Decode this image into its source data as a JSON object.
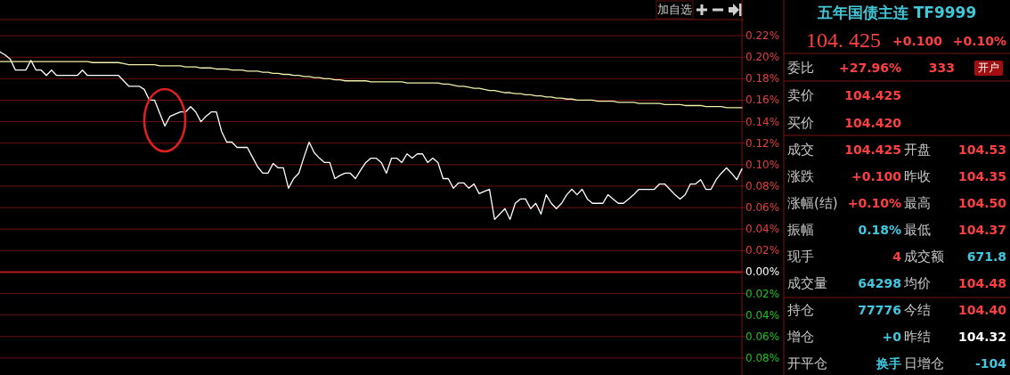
{
  "chart_data": [
    {
      "type": "line",
      "categories": [
        null,
        null,
        null,
        null,
        null,
        null,
        null,
        null,
        null,
        null,
        null,
        null,
        null,
        null,
        null,
        null,
        null,
        null,
        null,
        null,
        null,
        null,
        null,
        null,
        null,
        null,
        null,
        null,
        null,
        null,
        null,
        null,
        null,
        null,
        null,
        null,
        null,
        null,
        null,
        null,
        null,
        null,
        null,
        null,
        null,
        null,
        null,
        null,
        null,
        null,
        null,
        null,
        null,
        null,
        null,
        null,
        null,
        null,
        null,
        null,
        null,
        null,
        null,
        null,
        null,
        null,
        null,
        null,
        null,
        null,
        null,
        null,
        null,
        null,
        null,
        null,
        null,
        null,
        null,
        null,
        null,
        null,
        null,
        null,
        null,
        null,
        null,
        null,
        null,
        null,
        null,
        null,
        null,
        null,
        null,
        null,
        null,
        null,
        null,
        null,
        null,
        null,
        null,
        null,
        null,
        null,
        null,
        null,
        null,
        null,
        null,
        null,
        null,
        null,
        null,
        null,
        null,
        null,
        null,
        null,
        null,
        null,
        null,
        null,
        null,
        null,
        null,
        null,
        null,
        null,
        null,
        null,
        null,
        null,
        null,
        null,
        null,
        null,
        null,
        null,
        null,
        null,
        null,
        null,
        null
      ],
      "series": [
        {
          "color": "#ffffff",
          "values": [
            0.205,
            0.202,
            0.198,
            0.188,
            0.188,
            0.188,
            0.197,
            0.188,
            0.188,
            0.183,
            0.188,
            0.183,
            0.183,
            0.183,
            0.183,
            0.183,
            0.188,
            0.183,
            0.183,
            0.183,
            0.183,
            0.183,
            0.183,
            0.183,
            0.178,
            0.173,
            0.173,
            0.173,
            0.17,
            0.16,
            0.16,
            0.148,
            0.136,
            0.145,
            0.147,
            0.149,
            0.149,
            0.154,
            0.149,
            0.14,
            0.145,
            0.149,
            0.149,
            0.131,
            0.121,
            0.121,
            0.116,
            0.116,
            0.116,
            0.107,
            0.098,
            0.092,
            0.092,
            0.101,
            0.097,
            0.097,
            0.078,
            0.087,
            0.092,
            0.107,
            0.121,
            0.111,
            0.106,
            0.102,
            0.102,
            0.087,
            0.09,
            0.092,
            0.092,
            0.087,
            0.095,
            0.102,
            0.106,
            0.106,
            0.102,
            0.092,
            0.106,
            0.106,
            0.102,
            0.11,
            0.106,
            0.11,
            0.11,
            0.102,
            0.106,
            0.102,
            0.087,
            0.087,
            0.078,
            0.083,
            0.083,
            0.078,
            0.082,
            0.073,
            0.075,
            0.077,
            0.049,
            0.054,
            0.059,
            0.049,
            0.064,
            0.068,
            0.068,
            0.059,
            0.064,
            0.054,
            0.072,
            0.064,
            0.059,
            0.064,
            0.072,
            0.077,
            0.072,
            0.077,
            0.068,
            0.064,
            0.064,
            0.064,
            0.072,
            0.068,
            0.064,
            0.064,
            0.068,
            0.072,
            0.077,
            0.077,
            0.077,
            0.077,
            0.082,
            0.082,
            0.077,
            0.072,
            0.068,
            0.072,
            0.082,
            0.082,
            0.086,
            0.077,
            0.077,
            0.086,
            0.092,
            0.097,
            0.092,
            0.086,
            0.096
          ]
        },
        {
          "color": "#f0f0a8",
          "values": [
            0.196,
            0.196,
            0.196,
            0.196,
            0.196,
            0.196,
            0.196,
            0.196,
            0.196,
            0.196,
            0.196,
            0.196,
            0.196,
            0.196,
            0.196,
            0.196,
            0.196,
            0.196,
            0.195,
            0.195,
            0.195,
            0.195,
            0.195,
            0.195,
            0.194,
            0.193,
            0.193,
            0.193,
            0.193,
            0.193,
            0.193,
            0.192,
            0.192,
            0.192,
            0.192,
            0.192,
            0.191,
            0.191,
            0.191,
            0.19,
            0.19,
            0.19,
            0.189,
            0.189,
            0.189,
            0.188,
            0.188,
            0.188,
            0.187,
            0.187,
            0.187,
            0.186,
            0.186,
            0.185,
            0.185,
            0.184,
            0.184,
            0.183,
            0.183,
            0.182,
            0.182,
            0.181,
            0.181,
            0.18,
            0.18,
            0.179,
            0.179,
            0.178,
            0.178,
            0.178,
            0.178,
            0.178,
            0.177,
            0.177,
            0.177,
            0.177,
            0.177,
            0.177,
            0.177,
            0.176,
            0.176,
            0.176,
            0.176,
            0.176,
            0.176,
            0.176,
            0.175,
            0.175,
            0.174,
            0.173,
            0.173,
            0.172,
            0.171,
            0.171,
            0.17,
            0.169,
            0.169,
            0.168,
            0.167,
            0.167,
            0.166,
            0.166,
            0.165,
            0.165,
            0.164,
            0.164,
            0.163,
            0.163,
            0.162,
            0.162,
            0.161,
            0.161,
            0.16,
            0.16,
            0.16,
            0.16,
            0.159,
            0.159,
            0.159,
            0.159,
            0.158,
            0.158,
            0.158,
            0.158,
            0.157,
            0.157,
            0.157,
            0.157,
            0.157,
            0.156,
            0.156,
            0.156,
            0.156,
            0.155,
            0.155,
            0.155,
            0.155,
            0.154,
            0.154,
            0.154,
            0.154,
            0.153,
            0.153,
            0.153,
            0.153
          ]
        }
      ],
      "ylim": [
        -0.095,
        0.235
      ],
      "yticks": [
        {
          "value": -0.08,
          "label": "0.08%"
        },
        {
          "value": -0.06,
          "label": "0.06%"
        },
        {
          "value": -0.04,
          "label": "0.04%"
        },
        {
          "value": -0.02,
          "label": "0.02%"
        },
        {
          "value": 0,
          "label": "0.00%"
        },
        {
          "value": 0.02,
          "label": "0.02%"
        },
        {
          "value": 0.04,
          "label": "0.04%"
        },
        {
          "value": 0.06,
          "label": "0.06%"
        },
        {
          "value": 0.08,
          "label": "0.08%"
        },
        {
          "value": 0.1,
          "label": "0.10%"
        },
        {
          "value": 0.12,
          "label": "0.12%"
        },
        {
          "value": 0.14,
          "label": "0.14%"
        },
        {
          "value": 0.16,
          "label": "0.16%"
        },
        {
          "value": 0.18,
          "label": "0.18%"
        },
        {
          "value": 0.2,
          "label": "0.20%"
        },
        {
          "value": 0.22,
          "label": "0.22%"
        }
      ],
      "grid": "y",
      "ref_lines": [
        {
          "axis": "y",
          "value": 0,
          "color": "#b01818"
        }
      ]
    },
    {
      "type": "other",
      "title": "五年国债主连 TF9999",
      "color": "#40c8d8",
      "annotations": [
        "加自选",
        "104. 425",
        "+0.100",
        "+0.10%",
        "委比",
        "+27.96%",
        "333",
        "开户",
        "卖价",
        "104.425",
        "买价",
        "104.420",
        "成交",
        "104.425",
        "开盘",
        "104.53",
        "涨跌",
        "+0.100",
        "昨收",
        "104.35",
        "涨幅(结)",
        "+0.10%",
        "最高",
        "104.50",
        "振幅",
        "0.18%",
        "最低",
        "104.37",
        "现手",
        "4",
        "成交额",
        "671.8",
        "成交量",
        "64298",
        "均价",
        "104.48",
        "持仓",
        "77776",
        "今结",
        "104.40",
        "增仓",
        "+0",
        "昨结",
        "104.32",
        "开平仓",
        "换手",
        "日增仓",
        "-104"
      ],
      "colors": [
        "#c8c8c8",
        "#ff4040",
        "#ff4040",
        "#ff4040",
        "#c8c8c8",
        "#ff4040",
        "#ff4040",
        "#ffffff",
        "#c8c8c8",
        "#ff4040",
        "#c8c8c8",
        "#ff4040",
        "#c8c8c8",
        "#ff4040",
        "#c8c8c8",
        "#ff4040",
        "#c8c8c8",
        "#ff4040",
        "#c8c8c8",
        "#ff4040",
        "#c8c8c8",
        "#ff4040",
        "#c8c8c8",
        "#ff4040",
        "#c8c8c8",
        "#40c8e0",
        "#c8c8c8",
        "#ff4040",
        "#c8c8c8",
        "#ff4040",
        "#c8c8c8",
        "#40c8e0",
        "#c8c8c8",
        "#40c8e0",
        "#c8c8c8",
        "#ff4040",
        "#c8c8c8",
        "#40c8e0",
        "#c8c8c8",
        "#ff4040",
        "#c8c8c8",
        "#40c8e0",
        "#c8c8c8",
        "#ffffff",
        "#c8c8c8",
        "#40c8e0",
        "#c8c8c8",
        "#40c8e0"
      ]
    }
  ]
}
